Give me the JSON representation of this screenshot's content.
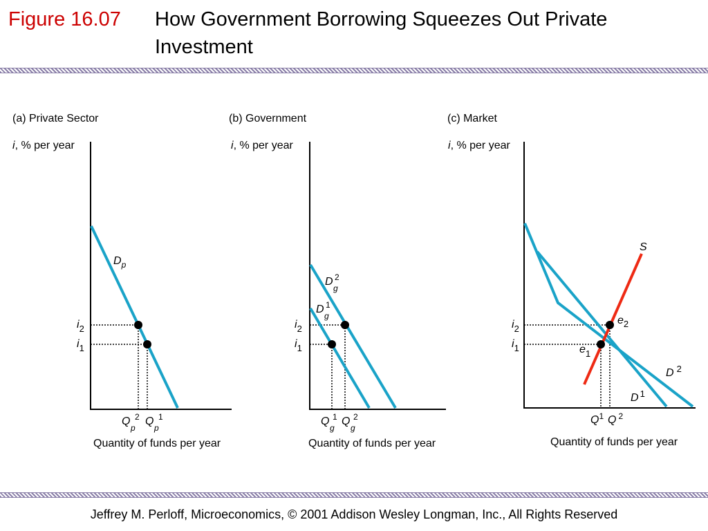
{
  "title": {
    "figure_number": "Figure 16.07",
    "text": "How Government Borrowing Squeezes Out Private Investment"
  },
  "panels": {
    "a": {
      "heading": "(a) Private Sector",
      "y_axis_var": "i",
      "y_axis_rest": ", % per year",
      "x_axis": "Quantity of funds per year",
      "curve_label": {
        "main": "D",
        "sub": "p"
      },
      "rate_labels": [
        {
          "main": "i",
          "sub": "2"
        },
        {
          "main": "i",
          "sub": "1"
        }
      ],
      "quantity_labels": [
        {
          "main": "Q",
          "sub": "p",
          "sup": "2"
        },
        {
          "main": "Q",
          "sub": "p",
          "sup": "1"
        }
      ]
    },
    "b": {
      "heading": "(b) Government",
      "y_axis_var": "i",
      "y_axis_rest": ", % per year",
      "x_axis": "Quantity of funds per year",
      "curve_labels": [
        {
          "main": "D",
          "sub": "g",
          "sup": "2"
        },
        {
          "main": "D",
          "sub": "g",
          "sup": "1"
        }
      ],
      "rate_labels": [
        {
          "main": "i",
          "sub": "2"
        },
        {
          "main": "i",
          "sub": "1"
        }
      ],
      "quantity_labels": [
        {
          "main": "Q",
          "sub": "g",
          "sup": "1"
        },
        {
          "main": "Q",
          "sub": "g",
          "sup": "2"
        }
      ]
    },
    "c": {
      "heading": "(c) Market",
      "y_axis_var": "i",
      "y_axis_rest": ", % per year",
      "x_axis": "Quantity of funds per year",
      "supply_label": "S",
      "demand_labels": [
        {
          "main": "D",
          "sup": "2"
        },
        {
          "main": "D",
          "sup": "1"
        }
      ],
      "equilibrium_labels": [
        {
          "main": "e",
          "sub": "2"
        },
        {
          "main": "e",
          "sub": "1"
        }
      ],
      "rate_labels": [
        {
          "main": "i",
          "sub": "2"
        },
        {
          "main": "i",
          "sub": "1"
        }
      ],
      "quantity_labels": [
        {
          "main": "Q",
          "sup": "1"
        },
        {
          "main": "Q",
          "sup": "2"
        }
      ]
    }
  },
  "colors": {
    "demand": "#1aa3c8",
    "supply": "#ee2a14",
    "figure_number": "#cc0000",
    "band": "#8a7fa8"
  },
  "footer": "Jeffrey M. Perloff, Microeconomics,  © 2001 Addison Wesley Longman, Inc.,  All Rights Reserved"
}
